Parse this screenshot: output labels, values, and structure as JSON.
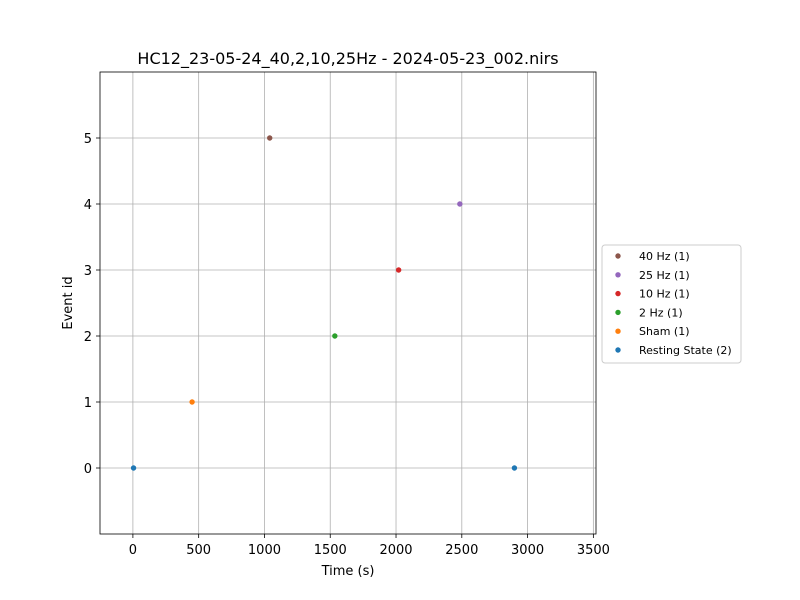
{
  "chart_data": {
    "type": "scatter",
    "title": "HC12_23-05-24_40,2,10,25Hz - 2024-05-23_002.nirs",
    "xlabel": "Time (s)",
    "ylabel": "Event id",
    "xlim": [
      -250,
      3520
    ],
    "ylim": [
      -1,
      6
    ],
    "xticks": [
      0,
      500,
      1000,
      1500,
      2000,
      2500,
      3000,
      3500
    ],
    "yticks": [
      0,
      1,
      2,
      3,
      4,
      5
    ],
    "grid": true,
    "legend_placement": "right, outside plot area",
    "series": [
      {
        "name": "40 Hz (1)",
        "color": "#8c564b",
        "points": [
          {
            "x": 1040,
            "y": 5
          }
        ]
      },
      {
        "name": "25 Hz (1)",
        "color": "#9467bd",
        "points": [
          {
            "x": 2485,
            "y": 4
          }
        ]
      },
      {
        "name": "10 Hz (1)",
        "color": "#d62728",
        "points": [
          {
            "x": 2020,
            "y": 3
          }
        ]
      },
      {
        "name": "2 Hz (1)",
        "color": "#2ca02c",
        "points": [
          {
            "x": 1535,
            "y": 2
          }
        ]
      },
      {
        "name": "Sham (1)",
        "color": "#ff7f0e",
        "points": [
          {
            "x": 450,
            "y": 1
          }
        ]
      },
      {
        "name": "Resting State (2)",
        "color": "#1f77b4",
        "points": [
          {
            "x": 5,
            "y": 0
          },
          {
            "x": 2900,
            "y": 0
          }
        ]
      }
    ]
  }
}
